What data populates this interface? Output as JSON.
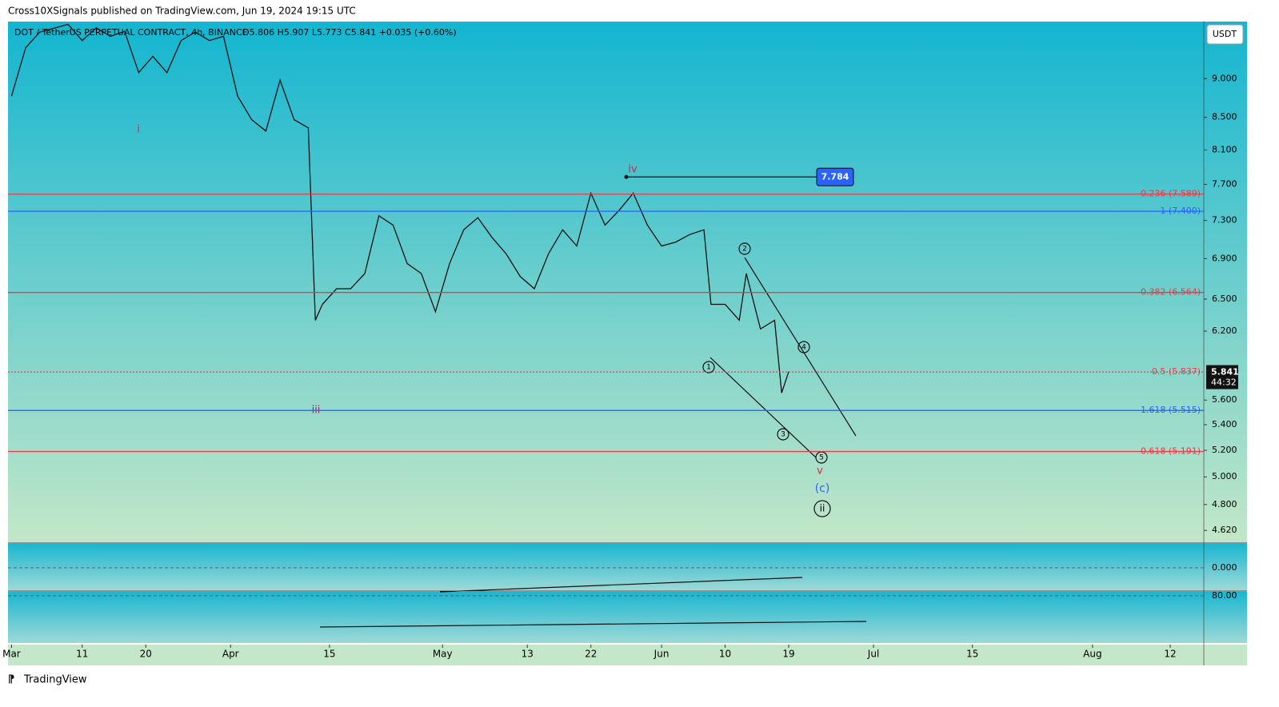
{
  "header": {
    "published": "Cross10XSignals published on TradingView.com, Jun 19, 2024 19:15 UTC",
    "symbol": "DOT / TetherUS PERPETUAL CONTRACT, 4h, BINANCE",
    "ohlc": "O5.806 H5.907 L5.773 C5.841 +0.035 (+0.60%)",
    "currency": "USDT",
    "brand": "TradingView"
  },
  "chart_data": {
    "type": "line",
    "log_scale": true,
    "x": [
      "2024-03-01",
      "2024-03-03",
      "2024-03-05",
      "2024-03-09",
      "2024-03-11",
      "2024-03-13",
      "2024-03-15",
      "2024-03-17",
      "2024-03-19",
      "2024-03-21",
      "2024-03-23",
      "2024-03-25",
      "2024-03-27",
      "2024-03-29",
      "2024-03-31",
      "2024-04-02",
      "2024-04-04",
      "2024-04-06",
      "2024-04-08",
      "2024-04-10",
      "2024-04-12",
      "2024-04-13",
      "2024-04-14",
      "2024-04-16",
      "2024-04-18",
      "2024-04-20",
      "2024-04-22",
      "2024-04-24",
      "2024-04-26",
      "2024-04-28",
      "2024-04-30",
      "2024-05-02",
      "2024-05-04",
      "2024-05-06",
      "2024-05-08",
      "2024-05-10",
      "2024-05-12",
      "2024-05-14",
      "2024-05-16",
      "2024-05-18",
      "2024-05-20",
      "2024-05-22",
      "2024-05-24",
      "2024-05-26",
      "2024-05-28",
      "2024-05-30",
      "2024-06-01",
      "2024-06-03",
      "2024-06-05",
      "2024-06-07",
      "2024-06-08",
      "2024-06-10",
      "2024-06-12",
      "2024-06-13",
      "2024-06-15",
      "2024-06-17",
      "2024-06-18",
      "2024-06-19"
    ],
    "series": [
      {
        "name": "DOTUSDT.P",
        "color": "#111111",
        "values": [
          8.77,
          9.42,
          9.64,
          9.75,
          9.52,
          9.7,
          9.58,
          9.65,
          9.08,
          9.3,
          9.08,
          9.52,
          9.64,
          9.52,
          9.58,
          8.77,
          8.47,
          8.33,
          8.98,
          8.47,
          8.37,
          6.3,
          6.45,
          6.6,
          6.6,
          6.75,
          7.35,
          7.25,
          6.85,
          6.75,
          6.38,
          6.85,
          7.2,
          7.33,
          7.12,
          6.95,
          6.72,
          6.6,
          6.95,
          7.2,
          7.03,
          7.6,
          7.25,
          7.41,
          7.6,
          7.25,
          7.03,
          7.07,
          7.15,
          7.2,
          6.45,
          6.45,
          6.3,
          6.75,
          6.22,
          6.3,
          5.66,
          5.84
        ]
      }
    ],
    "ylim": [
      4.54,
      9.79
    ],
    "yticks": [
      {
        "value": 9,
        "label": "9.000"
      },
      {
        "value": 8.5,
        "label": "8.500"
      },
      {
        "value": 8.1,
        "label": "8.100"
      },
      {
        "value": 7.7,
        "label": "7.700"
      },
      {
        "value": 7.3,
        "label": "7.300"
      },
      {
        "value": 6.9,
        "label": "6.900"
      },
      {
        "value": 6.5,
        "label": "6.500"
      },
      {
        "value": 6.2,
        "label": "6.200"
      },
      {
        "value": 5.6,
        "label": "5.600"
      },
      {
        "value": 5.4,
        "label": "5.400"
      },
      {
        "value": 5.2,
        "label": "5.200"
      },
      {
        "value": 5,
        "label": "5.000"
      },
      {
        "value": 4.8,
        "label": "4.800"
      },
      {
        "value": 4.62,
        "label": "4.620"
      }
    ],
    "xlim": [
      "2024-02-29T12:00",
      "2024-08-16T18:00"
    ],
    "xticks": [
      {
        "value": "2024-03-01",
        "label": "Mar"
      },
      {
        "value": "2024-03-11",
        "label": "11"
      },
      {
        "value": "2024-03-20",
        "label": "20"
      },
      {
        "value": "2024-04-01",
        "label": "Apr"
      },
      {
        "value": "2024-04-15",
        "label": "15"
      },
      {
        "value": "2024-05-01",
        "label": "May"
      },
      {
        "value": "2024-05-13",
        "label": "13"
      },
      {
        "value": "2024-05-22",
        "label": "22"
      },
      {
        "value": "2024-06-01",
        "label": "Jun"
      },
      {
        "value": "2024-06-10",
        "label": "10"
      },
      {
        "value": "2024-06-19",
        "label": "19"
      },
      {
        "value": "2024-07-01",
        "label": "Jul"
      },
      {
        "value": "2024-07-15",
        "label": "15"
      },
      {
        "value": "2024-08-01",
        "label": "Aug"
      },
      {
        "value": "2024-08-12",
        "label": "12"
      }
    ],
    "levels": [
      {
        "label": "0.236 (7.589)",
        "value": 7.589,
        "color": "#f23645"
      },
      {
        "label": "1 (7.400)",
        "value": 7.4,
        "color": "#2962ff"
      },
      {
        "label": "0.382 (6.564)",
        "value": 6.564,
        "color": "#f23645"
      },
      {
        "label": "0.5 (5.837)",
        "value": 5.837,
        "color": "#f23645",
        "dotted": true
      },
      {
        "label": "1.618 (5.515)",
        "value": 5.515,
        "color": "#2962ff"
      },
      {
        "label": "0.618 (5.191)",
        "value": 5.191,
        "color": "#f23645"
      }
    ],
    "marker_value": 7.784,
    "last_price": 5.841,
    "countdown": "44:32",
    "annotations": {
      "w_i": "i",
      "w_iii": "iii",
      "w_iv": "iv",
      "w_v": "v",
      "w_c": "(c)",
      "w_ii": "ii",
      "n1": "1",
      "n2": "2",
      "n3": "3",
      "n4": "4",
      "n5": "5"
    },
    "macd_pane": {
      "ylim": [
        -0.3,
        0.32
      ],
      "ytick": {
        "value": 0,
        "label": "0.000"
      }
    },
    "rsi_pane": {
      "ylim": [
        20,
        85
      ],
      "ytick": {
        "value": 80,
        "label": "80.00"
      }
    }
  }
}
